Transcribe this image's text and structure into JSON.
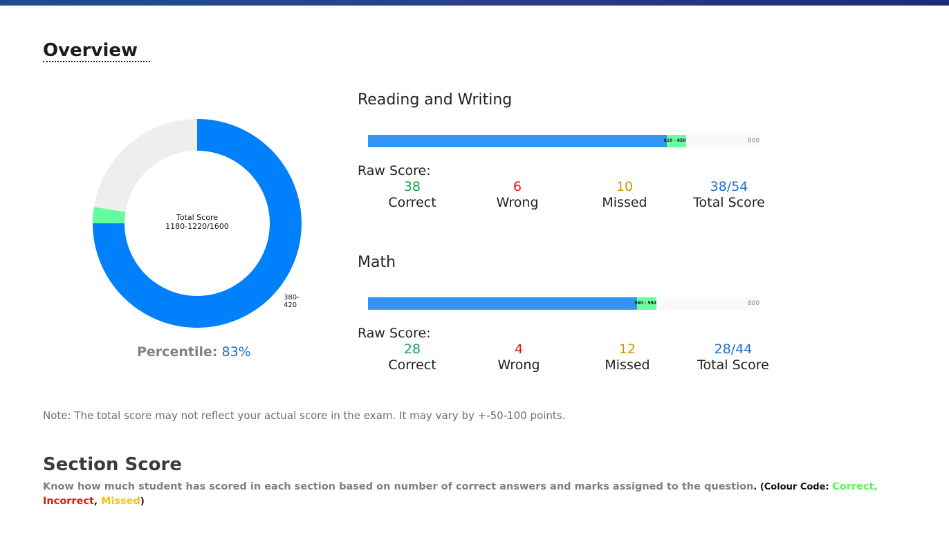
{
  "header": {
    "title": "Overview"
  },
  "total_score": {
    "label": "Total Score",
    "value": "1180-1220/1600",
    "range": "380-420",
    "fraction": 0.75,
    "band_fraction": 0.025,
    "colors": {
      "fill": "#0080fa",
      "band": "#62fd9c",
      "rest": "#eeeeee"
    }
  },
  "percentile": {
    "label": "Percentile:",
    "value": "83%"
  },
  "sections": [
    {
      "title": "Reading and Writing",
      "bar": {
        "score": 610,
        "band_low": 610,
        "band_high": 650,
        "max": 800,
        "band_label": "610 - 650",
        "max_label": "800"
      },
      "raw_label": "Raw Score:",
      "correct": "38",
      "correct_label": "Correct",
      "wrong": "6",
      "wrong_label": "Wrong",
      "missed": "10",
      "missed_label": "Missed",
      "total": "38/54",
      "total_label": "Total Score"
    },
    {
      "title": "Math",
      "bar": {
        "score": 550,
        "band_low": 550,
        "band_high": 590,
        "max": 800,
        "band_label": "550 - 590",
        "max_label": "800"
      },
      "raw_label": "Raw Score:",
      "correct": "28",
      "correct_label": "Correct",
      "wrong": "4",
      "wrong_label": "Wrong",
      "missed": "12",
      "missed_label": "Missed",
      "total": "28/44",
      "total_label": "Total Score"
    }
  ],
  "note": "Note: The total score may not reflect your actual score in the exam. It may vary by +-50-100 points.",
  "section_score": {
    "title": "Section Score",
    "description": "Know how much student has scored in each section based on number of correct answers and marks assigned to the question",
    "code_prefix": ". (Colour Code: ",
    "correct": "Correct,",
    "incorrect": "Incorrect",
    "sep": ",",
    "missed": "Missed",
    "code_suffix": ")"
  }
}
